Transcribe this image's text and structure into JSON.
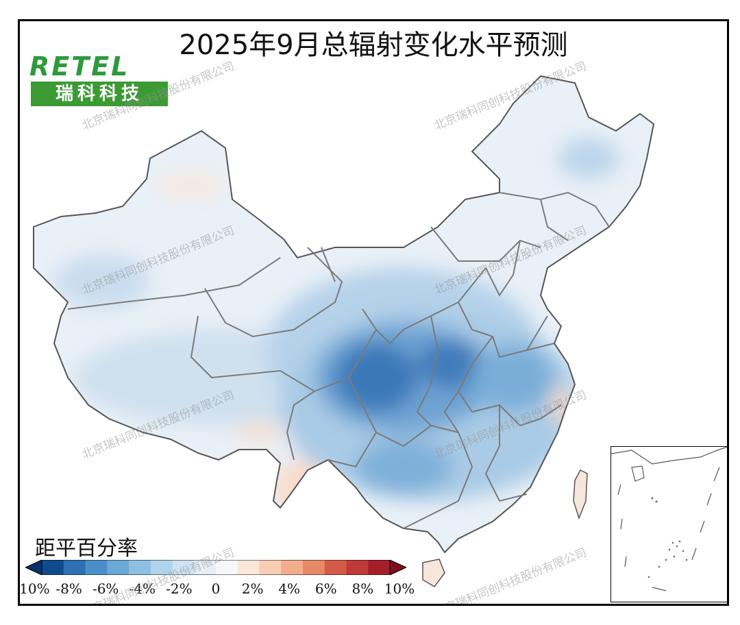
{
  "title": "2025年9月总辐射变化水平预测",
  "logo": {
    "brand": "RETEL",
    "name_cn": "瑞科科技"
  },
  "watermark": "北京瑞科同创科技股份有限公司",
  "legend": {
    "title": "距平百分率",
    "ticks": [
      "-10%",
      "-8%",
      "-6%",
      "-4%",
      "-2%",
      "0",
      "2%",
      "4%",
      "6%",
      "8%",
      "10%"
    ],
    "colors": [
      "#08306b",
      "#0f4a8f",
      "#2f6fb3",
      "#4a8fc8",
      "#6aa8d8",
      "#8dbfe3",
      "#b0d3ec",
      "#cfe2f1",
      "#e6eef6",
      "#f7f7f7",
      "#fbe6da",
      "#f8cdb4",
      "#f2ad8f",
      "#e78869",
      "#d45b4a",
      "#c03a37",
      "#a51f2b",
      "#7f0d1d"
    ]
  },
  "colors": {
    "frame": "#000000",
    "border_lines": "#7a7a7a",
    "coast_lines": "#555555"
  }
}
